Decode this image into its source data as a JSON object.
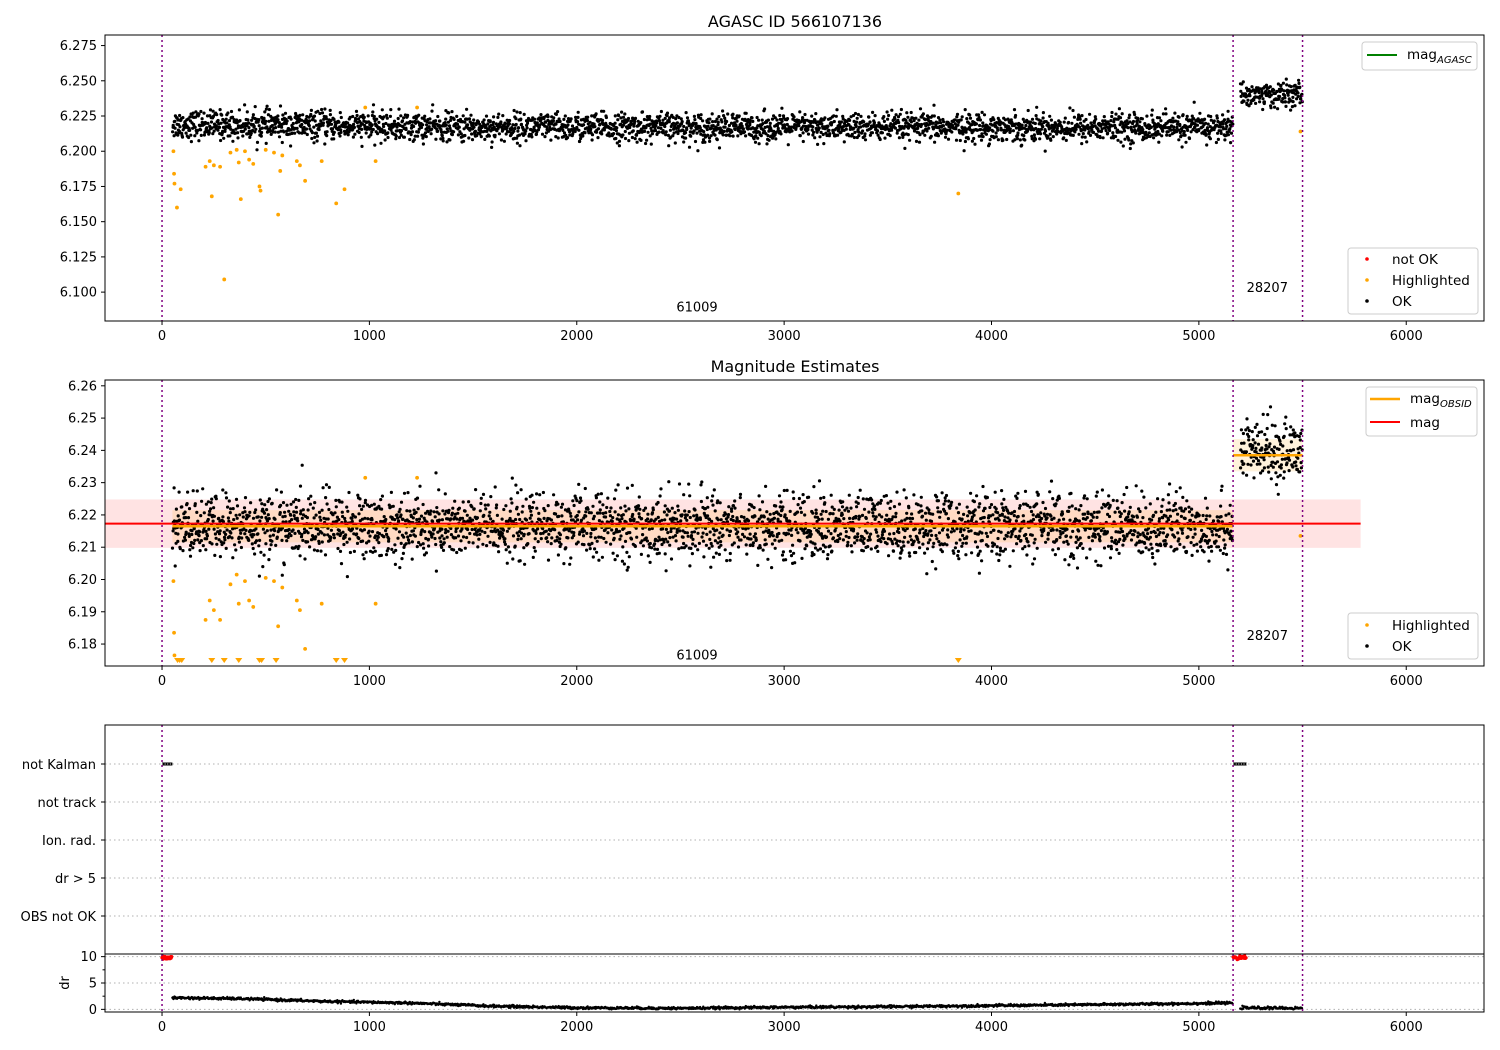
{
  "chart_data": [
    {
      "type": "scatter",
      "title": "AGASC ID 566107136",
      "xlim": [
        -275,
        6375
      ],
      "ylim": [
        6.0795,
        6.2825
      ],
      "x_ticks": [
        "0",
        "1000",
        "2000",
        "3000",
        "4000",
        "5000",
        "6000"
      ],
      "y_ticks": [
        "6.100",
        "6.125",
        "6.150",
        "6.175",
        "6.200",
        "6.225",
        "6.250",
        "6.275"
      ],
      "obs_boundaries": [
        0,
        5165,
        5500
      ],
      "obs_labels": [
        {
          "text": "61009",
          "x": 2580,
          "y": 6.089
        },
        {
          "text": "28207",
          "x": 5330,
          "y": 6.103
        }
      ],
      "segments": [
        {
          "x_start": 50,
          "x_end": 5165,
          "mean": 6.217,
          "scatter": 0.005,
          "start_mean": 6.219
        },
        {
          "x_start": 5200,
          "x_end": 5500,
          "mean": 6.24,
          "scatter": 0.0045
        }
      ],
      "series": [
        {
          "name": "not OK",
          "color": "#ff0000",
          "points": []
        },
        {
          "name": "Highlighted",
          "color": "#ffa500",
          "points": [
            [
              55,
              6.2
            ],
            [
              58,
              6.184
            ],
            [
              60,
              6.177
            ],
            [
              72,
              6.16
            ],
            [
              90,
              6.173
            ],
            [
              210,
              6.189
            ],
            [
              230,
              6.193
            ],
            [
              240,
              6.168
            ],
            [
              250,
              6.19
            ],
            [
              280,
              6.189
            ],
            [
              300,
              6.109
            ],
            [
              330,
              6.199
            ],
            [
              360,
              6.201
            ],
            [
              370,
              6.192
            ],
            [
              380,
              6.166
            ],
            [
              400,
              6.2
            ],
            [
              420,
              6.194
            ],
            [
              440,
              6.191
            ],
            [
              470,
              6.175
            ],
            [
              475,
              6.172
            ],
            [
              500,
              6.201
            ],
            [
              540,
              6.199
            ],
            [
              560,
              6.155
            ],
            [
              570,
              6.186
            ],
            [
              580,
              6.197
            ],
            [
              650,
              6.193
            ],
            [
              665,
              6.19
            ],
            [
              690,
              6.179
            ],
            [
              770,
              6.193
            ],
            [
              840,
              6.163
            ],
            [
              880,
              6.173
            ],
            [
              980,
              6.231
            ],
            [
              1030,
              6.193
            ],
            [
              1230,
              6.231
            ],
            [
              3840,
              6.17
            ],
            [
              5490,
              6.214
            ]
          ]
        },
        {
          "name": "OK",
          "color": "#000000",
          "points": "generated from segments"
        }
      ],
      "legend": {
        "lines": [
          {
            "name": "mag_AGASC",
            "color": "#008000"
          }
        ],
        "location": "upper right / lower right"
      }
    },
    {
      "type": "scatter",
      "title": "Magnitude Estimates",
      "xlim": [
        -275,
        6375
      ],
      "ylim": [
        6.1732,
        6.2618
      ],
      "x_ticks": [
        "0",
        "1000",
        "2000",
        "3000",
        "4000",
        "5000",
        "6000"
      ],
      "y_ticks": [
        "6.18",
        "6.19",
        "6.20",
        "6.21",
        "6.22",
        "6.23",
        "6.24",
        "6.25",
        "6.26"
      ],
      "obs_boundaries": [
        0,
        5165,
        5500
      ],
      "obs_labels": [
        {
          "text": "61009",
          "x": 2580,
          "y": 6.1765
        },
        {
          "text": "28207",
          "x": 5330,
          "y": 6.1825
        }
      ],
      "mag": {
        "value": 6.2173,
        "band": [
          6.2098,
          6.2248
        ],
        "x_range": [
          -275,
          5780
        ],
        "color": "#ff0000"
      },
      "mag_obsid": [
        {
          "x_range": [
            50,
            5165
          ],
          "value": 6.2165,
          "band": [
            6.2115,
            6.2215
          ]
        },
        {
          "x_range": [
            5165,
            5500
          ],
          "value": 6.2385,
          "band": [
            6.2335,
            6.2435
          ]
        }
      ],
      "series": [
        {
          "name": "Highlighted",
          "color": "#ffa500",
          "points": [
            [
              55,
              6.1995
            ],
            [
              58,
              6.1835
            ],
            [
              60,
              6.1765
            ],
            [
              210,
              6.1875
            ],
            [
              230,
              6.1935
            ],
            [
              250,
              6.1905
            ],
            [
              280,
              6.1875
            ],
            [
              330,
              6.1985
            ],
            [
              360,
              6.2015
            ],
            [
              370,
              6.1925
            ],
            [
              400,
              6.1995
            ],
            [
              420,
              6.1935
            ],
            [
              440,
              6.1915
            ],
            [
              500,
              6.2005
            ],
            [
              540,
              6.1995
            ],
            [
              560,
              6.1855
            ],
            [
              580,
              6.1975
            ],
            [
              650,
              6.1935
            ],
            [
              665,
              6.1905
            ],
            [
              690,
              6.1785
            ],
            [
              770,
              6.1925
            ],
            [
              980,
              6.2315
            ],
            [
              1030,
              6.1925
            ],
            [
              1230,
              6.2315
            ],
            [
              5490,
              6.2135
            ]
          ],
          "clipped_x": [
            75,
            85,
            95,
            240,
            300,
            370,
            470,
            480,
            550,
            840,
            880,
            3840
          ]
        },
        {
          "name": "OK",
          "color": "#000000",
          "points": "generated from segments"
        }
      ],
      "legend_lines": [
        {
          "name": "mag_OBSID",
          "color": "#ffa500"
        },
        {
          "name": "mag",
          "color": "#ff0000"
        }
      ]
    },
    {
      "type": "scatter",
      "title": "",
      "xlim": [
        -275,
        6375
      ],
      "flags": [
        "not Kalman",
        "not track",
        "Ion. rad.",
        "dr > 5",
        "OBS not OK"
      ],
      "flag_segments": [
        {
          "flag": "not Kalman",
          "x_start": 0,
          "x_end": 50
        },
        {
          "flag": "not Kalman",
          "x_start": 5165,
          "x_end": 5230
        }
      ],
      "obs_boundaries": [
        0,
        5165,
        5500
      ]
    },
    {
      "type": "scatter",
      "title": "",
      "ylabel": "dr",
      "xlim": [
        -275,
        6375
      ],
      "ylim": [
        -0.5,
        10.5
      ],
      "x_ticks": [
        "0",
        "1000",
        "2000",
        "3000",
        "4000",
        "5000",
        "6000"
      ],
      "y_ticks": [
        "0",
        "5",
        "10"
      ],
      "dr_high": [
        {
          "x_start": 0,
          "x_end": 50,
          "value": 9.8,
          "color": "#ff0000"
        },
        {
          "x_start": 5165,
          "x_end": 5230,
          "value": 9.8,
          "color": "#ff0000"
        }
      ],
      "dr_trend": [
        [
          50,
          2.2
        ],
        [
          400,
          2.0
        ],
        [
          800,
          1.5
        ],
        [
          1200,
          1.2
        ],
        [
          1600,
          0.6
        ],
        [
          2000,
          0.3
        ],
        [
          2500,
          0.2
        ],
        [
          3000,
          0.4
        ],
        [
          3500,
          0.5
        ],
        [
          4000,
          0.7
        ],
        [
          4500,
          0.9
        ],
        [
          5165,
          1.2
        ],
        [
          5200,
          0.3
        ],
        [
          5500,
          0.2
        ]
      ],
      "obs_boundaries": [
        0,
        5165,
        5500
      ]
    }
  ],
  "legends": {
    "top_mag": "mag",
    "top_mag_sub": "AGASC",
    "top_not_ok": "not OK",
    "top_highlighted": "Highlighted",
    "top_ok": "OK",
    "mid_mag_obsid": "mag",
    "mid_mag_obsid_sub": "OBSID",
    "mid_mag": "mag",
    "mid_highlighted": "Highlighted",
    "mid_ok": "OK"
  },
  "colors": {
    "ok": "#000000",
    "highlighted": "#ffa500",
    "not_ok": "#ff0000",
    "mag": "#ff0000",
    "mag_obsid": "#ffa500",
    "mag_agasc": "#008000",
    "obs_line": "#800080"
  }
}
